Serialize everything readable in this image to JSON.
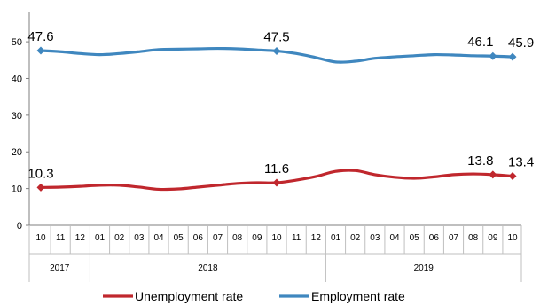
{
  "chart_data": {
    "type": "line",
    "x": [
      "10",
      "11",
      "12",
      "01",
      "02",
      "03",
      "04",
      "05",
      "06",
      "07",
      "08",
      "09",
      "10",
      "11",
      "12",
      "01",
      "02",
      "03",
      "04",
      "05",
      "06",
      "07",
      "08",
      "09",
      "10"
    ],
    "years": [
      {
        "label": "2017",
        "start": 0,
        "end": 2
      },
      {
        "label": "2018",
        "start": 3,
        "end": 14
      },
      {
        "label": "2019",
        "start": 15,
        "end": 24
      }
    ],
    "ylim": [
      0,
      58
    ],
    "yticks": [
      0,
      10,
      20,
      30,
      40,
      50
    ],
    "grid": false,
    "legend_position": "bottom",
    "series": [
      {
        "name": "Unemployment rate",
        "color": "#C0272D",
        "values": [
          10.3,
          10.4,
          10.6,
          10.9,
          10.9,
          10.4,
          9.8,
          9.9,
          10.4,
          10.9,
          11.4,
          11.6,
          11.6,
          12.3,
          13.3,
          14.7,
          14.9,
          13.8,
          13.1,
          12.8,
          13.2,
          13.8,
          14.0,
          13.8,
          13.4
        ],
        "labels": [
          {
            "index": 0,
            "text": "10.3"
          },
          {
            "index": 12,
            "text": "11.6"
          },
          {
            "index": 23,
            "text": "13.8"
          },
          {
            "index": 24,
            "text": "13.4"
          }
        ]
      },
      {
        "name": "Employment rate",
        "color": "#3F87BF",
        "values": [
          47.6,
          47.3,
          46.8,
          46.5,
          46.8,
          47.3,
          47.9,
          48.0,
          48.1,
          48.2,
          48.1,
          47.8,
          47.5,
          46.8,
          45.7,
          44.5,
          44.7,
          45.5,
          45.9,
          46.2,
          46.5,
          46.4,
          46.2,
          46.1,
          45.9
        ],
        "labels": [
          {
            "index": 0,
            "text": "47.6"
          },
          {
            "index": 12,
            "text": "47.5"
          },
          {
            "index": 23,
            "text": "46.1"
          },
          {
            "index": 24,
            "text": "45.9"
          }
        ]
      }
    ]
  }
}
